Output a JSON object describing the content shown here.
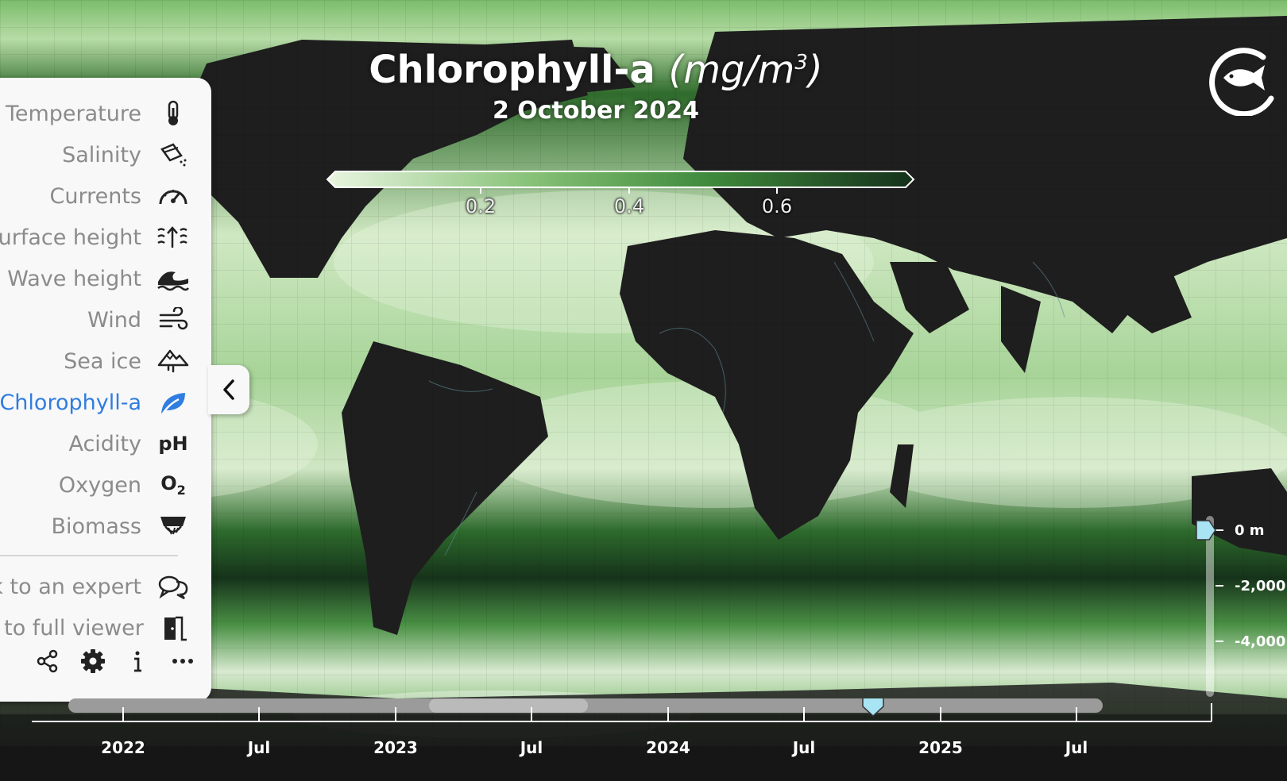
{
  "title": {
    "variable": "Chlorophyll-a",
    "unit_open": "(mg/m",
    "unit_sup": "3",
    "unit_close": ")",
    "date": "2 October 2024"
  },
  "colorbar": {
    "ticks": [
      "0.2",
      "0.4",
      "0.6"
    ],
    "colors": [
      "#e6f4de",
      "#86c177",
      "#3f8a3c",
      "#16331a"
    ]
  },
  "sidebar": {
    "items": [
      {
        "label": "Temperature",
        "icon": "thermometer-icon"
      },
      {
        "label": "Salinity",
        "icon": "salt-shaker-icon"
      },
      {
        "label": "Currents",
        "icon": "speedometer-icon"
      },
      {
        "label": "surface height",
        "icon": "sea-level-icon"
      },
      {
        "label": "Wave height",
        "icon": "wave-icon"
      },
      {
        "label": "Wind",
        "icon": "wind-icon"
      },
      {
        "label": "Sea ice",
        "icon": "mountain-ice-icon"
      },
      {
        "label": "Chlorophyll-a",
        "icon": "leaf-icon",
        "active": true
      },
      {
        "label": "Acidity",
        "icon": "ph-icon",
        "icon_text": "pH"
      },
      {
        "label": "Oxygen",
        "icon": "o2-icon",
        "icon_text": "O",
        "icon_sub": "2"
      },
      {
        "label": "Biomass",
        "icon": "fish-net-icon"
      }
    ],
    "links": [
      {
        "label": "lk to an expert",
        "icon": "chat-icon"
      },
      {
        "label": "o to full viewer",
        "icon": "door-icon"
      }
    ],
    "bottom_icons": [
      "share-icon",
      "gear-icon",
      "info-icon",
      "more-icon"
    ],
    "active_color": "#2f7de0"
  },
  "timeline": {
    "labels": [
      "2022",
      "Jul",
      "2023",
      "Jul",
      "2024",
      "Jul",
      "2025",
      "Jul"
    ],
    "current": "2 October 2024"
  },
  "depth": {
    "labels": [
      "0 m",
      "-2,000",
      "-4,000"
    ],
    "current": "0 m"
  },
  "accent_color": "#a8e4f3"
}
